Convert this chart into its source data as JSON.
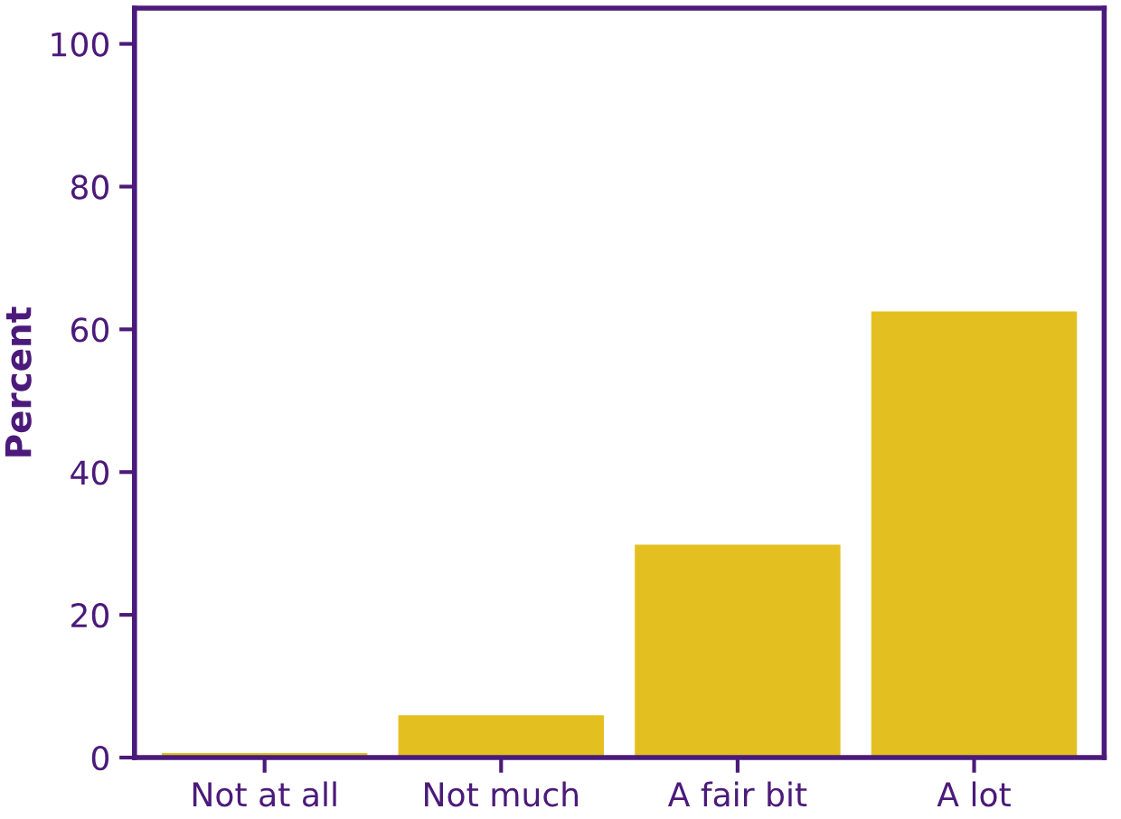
{
  "chart_data": {
    "type": "bar",
    "ylabel": "Percent",
    "categories": [
      "Not at all",
      "Not much",
      "A fair bit",
      "A lot"
    ],
    "values": [
      0.8,
      6.1,
      30,
      62.7
    ],
    "color": "#e3c020",
    "ylim": [
      0,
      105
    ],
    "yticks": [
      0,
      20,
      40,
      60,
      80,
      100
    ],
    "grid": false,
    "legend": false
  }
}
